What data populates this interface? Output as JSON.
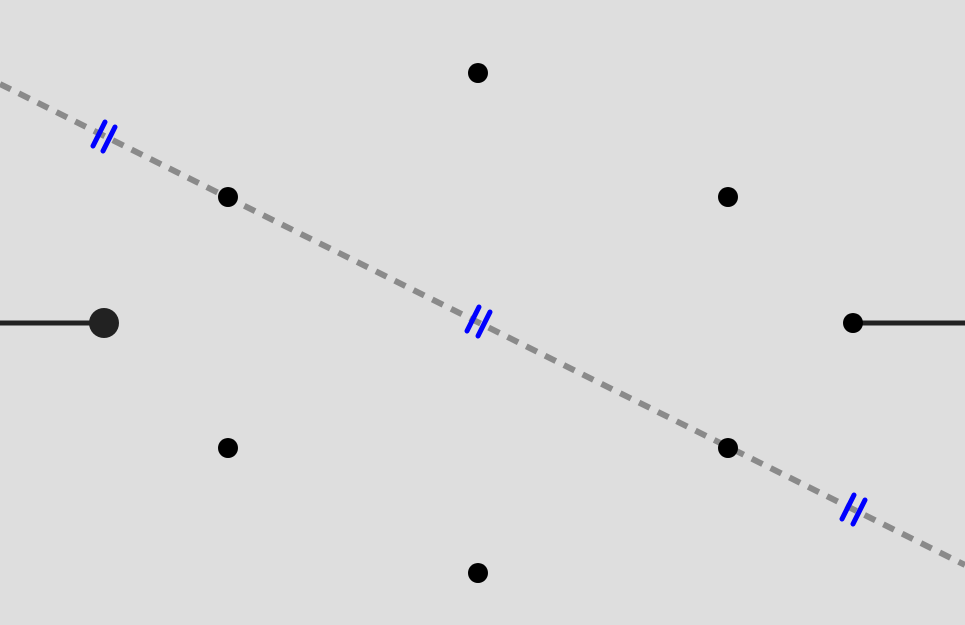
{
  "colors": {
    "background": "#dedede",
    "point": "#000000",
    "slider_handle": "#222222",
    "slider_track": "#222222",
    "dashed_line": "#8a8a8a",
    "tick_marks": "#0000ff"
  },
  "diagram": {
    "slider": {
      "value": 0
    },
    "points": [
      {
        "id": "top"
      },
      {
        "id": "upper-left"
      },
      {
        "id": "upper-right"
      },
      {
        "id": "right"
      },
      {
        "id": "lower-left"
      },
      {
        "id": "lower-right"
      },
      {
        "id": "bottom"
      }
    ],
    "dashed_line": {
      "style": "dashed"
    },
    "tick_marks": [
      {
        "id": "left",
        "count": 2
      },
      {
        "id": "center",
        "count": 2
      },
      {
        "id": "right",
        "count": 2
      }
    ]
  }
}
